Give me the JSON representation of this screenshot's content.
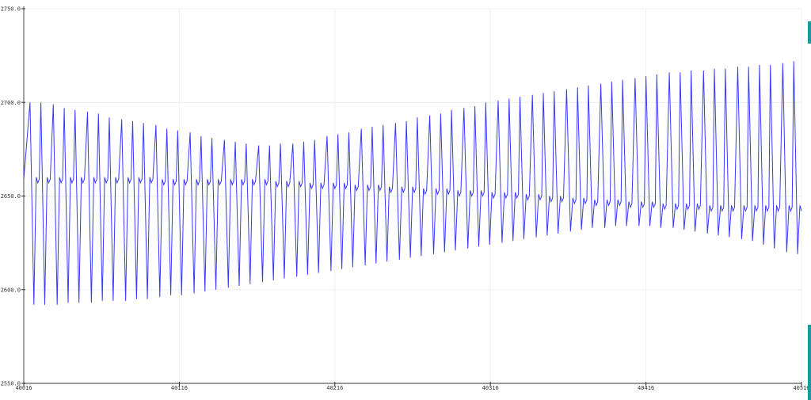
{
  "chart_data": {
    "type": "line",
    "title": "",
    "xlabel": "",
    "ylabel": "",
    "xlim": [
      40016,
      40516
    ],
    "ylim": [
      2550,
      2750
    ],
    "grid": true,
    "x_ticks": [
      "40016",
      "40116",
      "40216",
      "40316",
      "40416",
      "40516"
    ],
    "y_ticks": [
      "2550.0",
      "2600.0",
      "2650.0",
      "2700.0",
      "2750.0"
    ],
    "series": [
      {
        "color": "#3a3aff",
        "shape": "periodic spike: peak, sharp drop to trough, rise to plateau with small notch, spike again",
        "cycle_peak_x": [
          40020,
          40027,
          40035,
          40042,
          40049,
          40057,
          40064,
          40071,
          40079,
          40086,
          40093,
          40101,
          40108,
          40115,
          40123,
          40130,
          40137,
          40145,
          40152,
          40159,
          40167,
          40174,
          40181,
          40189,
          40196,
          40203,
          40211,
          40218,
          40225,
          40233,
          40240,
          40247,
          40255,
          40262,
          40269,
          40277,
          40284,
          40291,
          40299,
          40306,
          40313,
          40321,
          40328,
          40335,
          40343,
          40350,
          40357,
          40365,
          40372,
          40379,
          40387,
          40394,
          40401,
          40409,
          40416,
          40423,
          40431,
          40438,
          40445,
          40453,
          40460,
          40467,
          40475,
          40482,
          40489,
          40496,
          40504,
          40511
        ],
        "cycle_peak": [
          2700,
          2700,
          2699,
          2697,
          2696,
          2695,
          2694,
          2692,
          2691,
          2690,
          2689,
          2688,
          2686,
          2685,
          2684,
          2682,
          2681,
          2680,
          2679,
          2678,
          2677,
          2677,
          2678,
          2678,
          2679,
          2680,
          2682,
          2683,
          2684,
          2686,
          2687,
          2688,
          2689,
          2690,
          2692,
          2693,
          2694,
          2696,
          2697,
          2698,
          2700,
          2701,
          2702,
          2703,
          2704,
          2705,
          2706,
          2707,
          2708,
          2709,
          2710,
          2711,
          2712,
          2713,
          2714,
          2715,
          2716,
          2716,
          2717,
          2717,
          2718,
          2718,
          2719,
          2719,
          2720,
          2720,
          2721,
          2722
        ],
        "cycle_trough": [
          2592,
          2592,
          2592,
          2593,
          2593,
          2593,
          2594,
          2594,
          2594,
          2595,
          2595,
          2596,
          2597,
          2597,
          2598,
          2599,
          2600,
          2601,
          2602,
          2603,
          2604,
          2605,
          2606,
          2607,
          2608,
          2609,
          2610,
          2611,
          2612,
          2613,
          2614,
          2615,
          2616,
          2617,
          2618,
          2619,
          2620,
          2621,
          2622,
          2623,
          2624,
          2625,
          2626,
          2627,
          2628,
          2629,
          2630,
          2631,
          2632,
          2633,
          2633,
          2634,
          2634,
          2634,
          2634,
          2633,
          2633,
          2632,
          2631,
          2630,
          2629,
          2628,
          2627,
          2626,
          2624,
          2622,
          2620,
          2619
        ],
        "cycle_plateau": [
          2659,
          2659,
          2659,
          2659,
          2659,
          2659,
          2659,
          2659,
          2659,
          2659,
          2659,
          2658,
          2658,
          2658,
          2658,
          2658,
          2658,
          2658,
          2658,
          2658,
          2658,
          2657,
          2657,
          2657,
          2656,
          2656,
          2656,
          2656,
          2655,
          2655,
          2655,
          2654,
          2654,
          2654,
          2653,
          2653,
          2653,
          2652,
          2652,
          2652,
          2651,
          2651,
          2651,
          2650,
          2650,
          2649,
          2649,
          2648,
          2648,
          2647,
          2647,
          2647,
          2646,
          2646,
          2646,
          2645,
          2645,
          2645,
          2645,
          2644,
          2644,
          2644,
          2644,
          2644,
          2644,
          2644,
          2644,
          2644
        ]
      }
    ]
  },
  "colors": {
    "scroll_marker": "#1a9a9a",
    "grid": "#eeeeee",
    "axis": "#333333"
  }
}
